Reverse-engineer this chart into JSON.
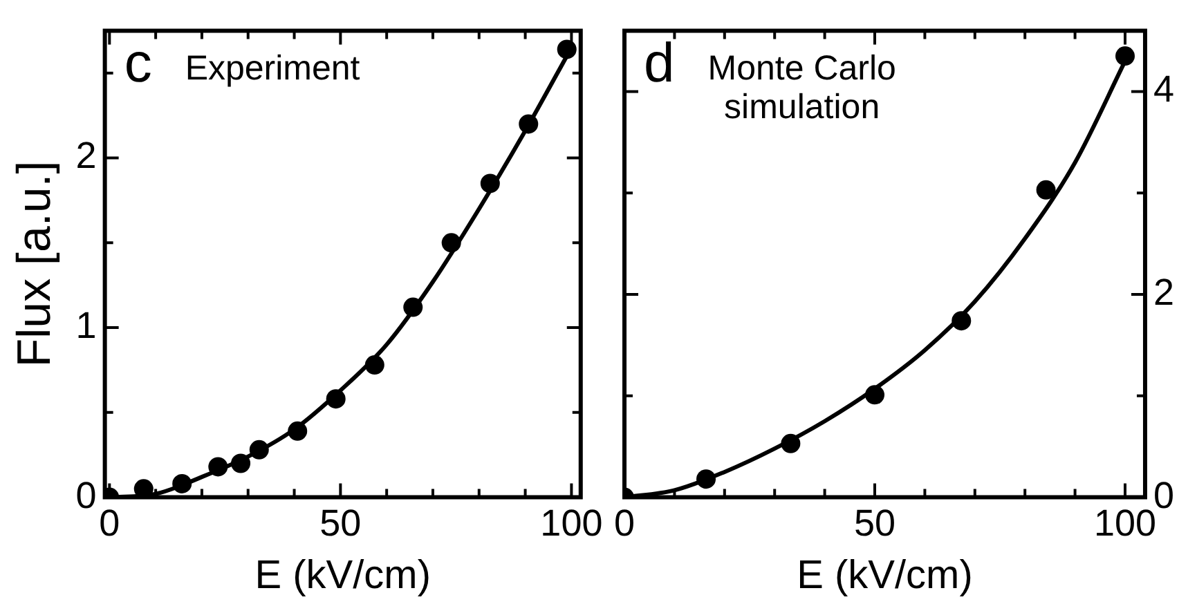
{
  "chart_data": [
    {
      "type": "scatter",
      "annotations": [
        "c",
        "Experiment"
      ],
      "xlabel": "E (kV/cm)",
      "ylabel": "Flux [a.u.]",
      "xlim": [
        -1,
        102
      ],
      "xticks": [
        0,
        {
          "value": 10,
          "label": null
        },
        {
          "value": 20,
          "label": null
        },
        {
          "value": 30,
          "label": null
        },
        {
          "value": 40,
          "label": null
        },
        50,
        {
          "value": 60,
          "label": null
        },
        {
          "value": 70,
          "label": null
        },
        {
          "value": 80,
          "label": null
        },
        {
          "value": 90,
          "label": null
        },
        100
      ],
      "ylim": [
        0,
        2.75
      ],
      "yticks": [
        0,
        {
          "value": 0.5,
          "label": null
        },
        1,
        {
          "value": 1.5,
          "label": null
        },
        2,
        {
          "value": 2.5,
          "label": null
        }
      ],
      "grid": false,
      "legend": false,
      "series": [
        {
          "marker": "circle",
          "color": "#000000",
          "x": [
            0,
            7.4,
            15.7,
            23.5,
            28.4,
            32.4,
            40.7,
            49,
            57.4,
            65.7,
            74,
            82.4,
            90.7,
            99
          ],
          "values": [
            0,
            0.05,
            0.08,
            0.18,
            0.2,
            0.28,
            0.39,
            0.58,
            0.78,
            1.12,
            1.5,
            1.85,
            2.2,
            2.64
          ]
        },
        {
          "type": "line",
          "marker": "none",
          "color": "#000000",
          "x": [
            0,
            10,
            20,
            30,
            40,
            50,
            60,
            70,
            80,
            90,
            100
          ],
          "values": [
            0,
            0.02,
            0.12,
            0.24,
            0.4,
            0.63,
            0.9,
            1.27,
            1.7,
            2.16,
            2.65
          ]
        }
      ]
    },
    {
      "type": "scatter",
      "annotations": [
        "d",
        "Monte Carlo simulation"
      ],
      "xlabel": "E (kV/cm)",
      "xlim": [
        0,
        104
      ],
      "xticks": [
        0,
        {
          "value": 10,
          "label": null
        },
        {
          "value": 20,
          "label": null
        },
        {
          "value": 30,
          "label": null
        },
        {
          "value": 40,
          "label": null
        },
        50,
        {
          "value": 60,
          "label": null
        },
        {
          "value": 70,
          "label": null
        },
        {
          "value": 80,
          "label": null
        },
        {
          "value": 90,
          "label": null
        },
        100
      ],
      "y2lim": [
        0,
        4.6
      ],
      "y2ticks": [
        0,
        {
          "value": 1,
          "label": null
        },
        2,
        {
          "value": 3,
          "label": null
        },
        4
      ],
      "grid": false,
      "legend": false,
      "series": [
        {
          "axis": "y2",
          "marker": "circle",
          "color": "#000000",
          "x": [
            0,
            16.3,
            33.2,
            50,
            67.3,
            84.2,
            100
          ],
          "values": [
            0,
            0.18,
            0.53,
            1.01,
            1.74,
            3.03,
            4.35
          ]
        },
        {
          "axis": "y2",
          "type": "line",
          "marker": "none",
          "color": "#000000",
          "x": [
            0,
            10,
            20,
            30,
            40,
            50,
            60,
            70,
            80,
            90,
            100
          ],
          "values": [
            0,
            0.07,
            0.25,
            0.48,
            0.75,
            1.07,
            1.45,
            1.93,
            2.55,
            3.3,
            4.3
          ]
        }
      ]
    }
  ]
}
